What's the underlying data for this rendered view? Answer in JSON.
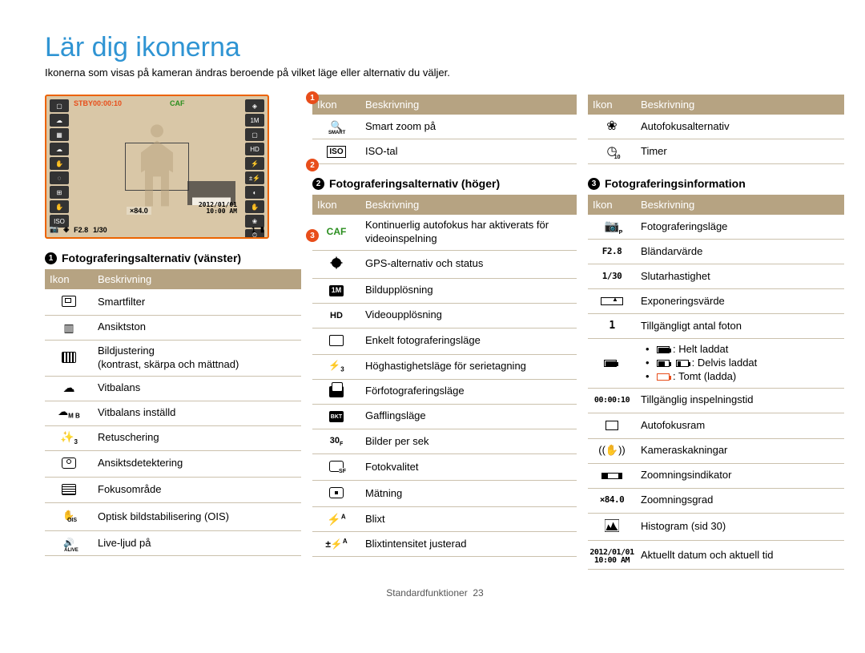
{
  "title": "Lär dig ikonerna",
  "intro": "Ikonerna som visas på kameran ändras beroende på vilket läge eller alternativ du väljer.",
  "footer_label": "Standardfunktioner",
  "footer_page": "23",
  "markers": {
    "1": "1",
    "2": "2",
    "3": "3"
  },
  "screen": {
    "stby": "STBY",
    "time": "00:00:10",
    "caf": "CAF",
    "x84": "×84.0",
    "date": "2012/01/01",
    "time2": "10:00 AM",
    "f": "F2.8",
    "shutter": "1/30",
    "count": "1"
  },
  "sections": {
    "left": {
      "num": "1",
      "title": "Fotograferingsalternativ (vänster)",
      "cols": [
        "Ikon",
        "Beskrivning"
      ],
      "rows": [
        {
          "icon": "smartfilter",
          "desc": "Smartfilter"
        },
        {
          "icon": "facetone",
          "desc": "Ansiktston"
        },
        {
          "icon": "imgadjust",
          "desc": "Bildjustering\n(kontrast, skärpa och mättnad)"
        },
        {
          "icon": "wb",
          "desc": "Vitbalans"
        },
        {
          "icon": "wbset",
          "desc": "Vitbalans inställd"
        },
        {
          "icon": "retouch",
          "desc": "Retuschering"
        },
        {
          "icon": "facedetect",
          "desc": "Ansiktsdetektering"
        },
        {
          "icon": "focusarea",
          "desc": "Fokusområde"
        },
        {
          "icon": "ois",
          "desc": "Optisk bildstabilisering (OIS)"
        },
        {
          "icon": "alive",
          "desc": "Live-ljud på"
        }
      ]
    },
    "left_extra": {
      "cols": [
        "Ikon",
        "Beskrivning"
      ],
      "rows": [
        {
          "icon": "smartzoom",
          "desc": "Smart zoom på"
        },
        {
          "icon": "iso",
          "desc": "ISO-tal"
        }
      ]
    },
    "right_opts": {
      "num": "2",
      "title": "Fotograferingsalternativ (höger)",
      "cols": [
        "Ikon",
        "Beskrivning"
      ],
      "rows": [
        {
          "icon": "caf",
          "desc": "Kontinuerlig autofokus har aktiverats för videoinspelning"
        },
        {
          "icon": "gps",
          "desc": "GPS-alternativ och status"
        },
        {
          "icon": "res",
          "desc": "Bildupplösning"
        },
        {
          "icon": "vres",
          "desc": "Videoupplösning"
        },
        {
          "icon": "simple",
          "desc": "Enkelt fotograferingsläge"
        },
        {
          "icon": "burst",
          "desc": "Höghastighetsläge för serietagning"
        },
        {
          "icon": "precap",
          "desc": "Förfotograferingsläge"
        },
        {
          "icon": "bracket",
          "desc": "Gafflingsläge"
        },
        {
          "icon": "fps",
          "desc": "Bilder per sek"
        },
        {
          "icon": "quality",
          "desc": "Fotokvalitet"
        },
        {
          "icon": "metering",
          "desc": "Mätning"
        },
        {
          "icon": "flash",
          "desc": "Blixt"
        },
        {
          "icon": "flashint",
          "desc": "Blixtintensitet justerad"
        }
      ]
    },
    "right_extra": {
      "cols": [
        "Ikon",
        "Beskrivning"
      ],
      "rows": [
        {
          "icon": "afopt",
          "desc": "Autofokusalternativ"
        },
        {
          "icon": "timer",
          "desc": "Timer"
        }
      ]
    },
    "info": {
      "num": "3",
      "title": "Fotograferingsinformation",
      "cols": [
        "Ikon",
        "Beskrivning"
      ],
      "rows": [
        {
          "icon": "mode",
          "desc": "Fotograferingsläge"
        },
        {
          "icon": "aperture",
          "label": "F2.8",
          "desc": "Bländarvärde"
        },
        {
          "icon": "shutter",
          "label": "1/30",
          "desc": "Slutarhastighet"
        },
        {
          "icon": "ev",
          "desc": "Exponeringsvärde"
        },
        {
          "icon": "count",
          "label": "1",
          "desc": "Tillgängligt antal foton"
        },
        {
          "icon": "battery",
          "desc": "BATTERY_LIST"
        },
        {
          "icon": "rectime",
          "label": "00:00:10",
          "desc": "Tillgänglig inspelningstid"
        },
        {
          "icon": "afframe",
          "desc": "Autofokusram"
        },
        {
          "icon": "shake",
          "desc": "Kameraskakningar"
        },
        {
          "icon": "zoomind",
          "desc": "Zoomningsindikator"
        },
        {
          "icon": "zoomx",
          "label": "×84.0",
          "desc": "Zoomningsgrad"
        },
        {
          "icon": "histogram",
          "desc": "Histogram (sid 30)"
        },
        {
          "icon": "datetime",
          "label": "2012/01/01\n10:00 AM",
          "desc": "Aktuellt datum och aktuell tid"
        }
      ],
      "battery": {
        "full": ": Helt laddat",
        "partial": ": Delvis laddat",
        "empty": ": Tomt (ladda)"
      }
    }
  }
}
